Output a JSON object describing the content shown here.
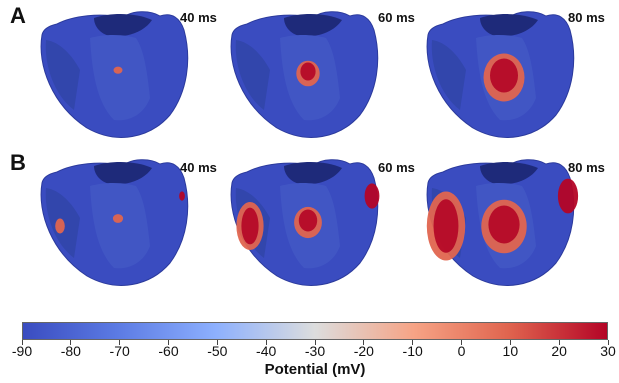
{
  "rows": [
    {
      "label": "A",
      "times": [
        "40 ms",
        "60 ms",
        "80 ms"
      ],
      "activation": [
        0.02,
        0.35,
        0.75
      ],
      "septal_activation": [
        0.0,
        0.0,
        0.0
      ],
      "apex_activation": [
        0.0,
        0.0,
        0.0
      ]
    },
    {
      "label": "B",
      "times": [
        "40 ms",
        "60 ms",
        "80 ms"
      ],
      "activation": [
        0.05,
        0.45,
        0.85
      ],
      "septal_activation": [
        0.05,
        0.6,
        0.95
      ],
      "apex_activation": [
        0.1,
        0.6,
        0.9
      ]
    }
  ],
  "colorbar": {
    "ticks": [
      "-90",
      "-80",
      "-70",
      "-60",
      "-50",
      "-40",
      "-30",
      "-20",
      "-10",
      "0",
      "10",
      "20",
      "30"
    ],
    "title": "Potential (mV)",
    "min": -90,
    "max": 30,
    "colors": {
      "low": "#3a4cc0",
      "mid": "#dcdddd",
      "high": "#b40426"
    }
  },
  "colors": {
    "tissue_rest": "#3a4cc0",
    "tissue_dark": "#1e2a7a",
    "activated": "#e0654f",
    "activated_core": "#b40426"
  }
}
